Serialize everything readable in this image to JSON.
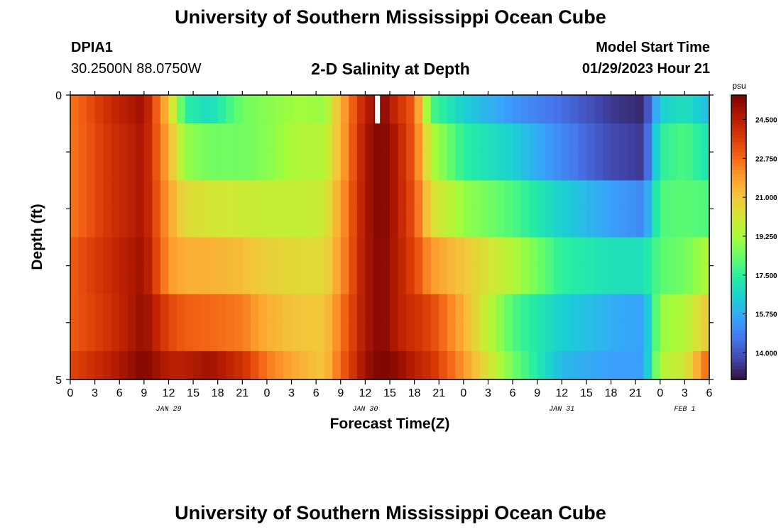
{
  "page": {
    "title": "University of Southern Mississippi Ocean Cube",
    "station_id": "DPIA1",
    "coordinates": "30.2500N  88.0750W",
    "subtitle": "2-D Salinity at Depth",
    "model_start_label": "Model Start Time",
    "model_start_value": "01/29/2023 Hour 21",
    "footer_title": "University of Southern Mississippi Ocean Cube"
  },
  "colors": {
    "colormap": [
      "#30123b",
      "#4145ab",
      "#4675ed",
      "#39a2fc",
      "#1bcfd4",
      "#24eca6",
      "#61fc6c",
      "#a4fc3b",
      "#d1e834",
      "#f3c63a",
      "#fe9b2d",
      "#f36315",
      "#d93806",
      "#b11901",
      "#7a0403"
    ]
  },
  "chart_data": {
    "type": "heatmap",
    "title": "2-D Salinity at Depth",
    "xlabel": "Forecast Time(Z)",
    "ylabel": "Depth (ft)",
    "x_hours": [
      0,
      3,
      6,
      9,
      12,
      15,
      18,
      21,
      24,
      27,
      30,
      33,
      36,
      39,
      42,
      45,
      48,
      51,
      54,
      57,
      60,
      63,
      66,
      69,
      72,
      75,
      78
    ],
    "x_tick_labels": [
      "0",
      "3",
      "6",
      "9",
      "12",
      "15",
      "18",
      "21",
      "0",
      "3",
      "6",
      "9",
      "12",
      "15",
      "18",
      "21",
      "0",
      "3",
      "6",
      "9",
      "12",
      "15",
      "18",
      "21",
      "0",
      "3",
      "6"
    ],
    "date_labels": [
      {
        "hour": 12,
        "label": "JAN 29"
      },
      {
        "hour": 36,
        "label": "JAN 30"
      },
      {
        "hour": 60,
        "label": "JAN 31"
      },
      {
        "hour": 75,
        "label": "FEB 1"
      }
    ],
    "x_range": [
      0,
      78
    ],
    "y_range": [
      0,
      5
    ],
    "y_tick_labels": [
      "0",
      "5"
    ],
    "depth_levels": [
      0,
      1,
      2,
      3,
      4,
      5
    ],
    "colorbar": {
      "unit": "psu",
      "min": 12.8,
      "max": 25.6,
      "tick_values": [
        14.0,
        15.75,
        17.5,
        19.25,
        21.0,
        22.75,
        24.5
      ],
      "tick_labels": [
        "14.000",
        "15.750",
        "17.500",
        "19.250",
        "21.000",
        "22.750",
        "24.500"
      ]
    },
    "missing_interval": {
      "hour_start": 37.2,
      "hour_end": 37.8,
      "depth_top": 0,
      "depth_bottom": 0.5
    },
    "salinity_profiles": [
      {
        "depth": 0.25,
        "hours": [
          0,
          5,
          9,
          12,
          14,
          17,
          21,
          24,
          28,
          31,
          33,
          36,
          38,
          40,
          42,
          44,
          48,
          54,
          60,
          66,
          70,
          72,
          75,
          78
        ],
        "psu": [
          22.5,
          24.2,
          25.0,
          21.0,
          17.5,
          16.8,
          18.5,
          18.8,
          19.2,
          19.0,
          21.5,
          24.5,
          25.5,
          24.0,
          23.0,
          18.0,
          16.5,
          15.3,
          14.5,
          13.5,
          13.2,
          16.5,
          17.0,
          16.0
        ]
      },
      {
        "depth": 1.25,
        "hours": [
          0,
          5,
          9,
          12,
          14,
          17,
          21,
          24,
          28,
          31,
          33,
          36,
          38,
          40,
          42,
          44,
          48,
          54,
          60,
          66,
          70,
          72,
          75,
          78
        ],
        "psu": [
          22.5,
          24.0,
          24.8,
          21.5,
          19.0,
          18.5,
          18.5,
          18.8,
          19.5,
          19.5,
          21.5,
          24.8,
          25.6,
          24.5,
          23.0,
          19.5,
          17.5,
          16.5,
          15.0,
          13.8,
          13.5,
          17.5,
          18.0,
          17.0
        ]
      },
      {
        "depth": 2.25,
        "hours": [
          0,
          5,
          9,
          12,
          14,
          17,
          21,
          24,
          28,
          31,
          33,
          36,
          38,
          40,
          42,
          44,
          48,
          54,
          60,
          66,
          70,
          72,
          75,
          78
        ],
        "psu": [
          22.5,
          24.0,
          24.8,
          21.8,
          20.5,
          20.2,
          20.0,
          19.8,
          19.8,
          20.0,
          21.8,
          24.8,
          25.6,
          24.5,
          23.2,
          20.5,
          19.0,
          18.0,
          16.5,
          15.5,
          15.0,
          18.0,
          18.2,
          18.0
        ]
      },
      {
        "depth": 3.25,
        "hours": [
          0,
          5,
          9,
          12,
          14,
          17,
          21,
          24,
          28,
          31,
          33,
          36,
          38,
          40,
          42,
          44,
          48,
          54,
          60,
          66,
          70,
          72,
          75,
          78
        ],
        "psu": [
          23.0,
          24.2,
          25.0,
          22.0,
          21.5,
          21.5,
          21.2,
          20.8,
          20.5,
          20.5,
          22.0,
          24.8,
          25.5,
          24.5,
          23.5,
          22.0,
          21.0,
          19.5,
          17.5,
          17.0,
          17.0,
          18.2,
          18.5,
          19.5
        ]
      },
      {
        "depth": 4.25,
        "hours": [
          0,
          5,
          9,
          12,
          14,
          17,
          21,
          24,
          28,
          31,
          33,
          36,
          38,
          40,
          42,
          44,
          48,
          54,
          60,
          66,
          70,
          72,
          75,
          78
        ],
        "psu": [
          23.0,
          24.0,
          25.2,
          23.5,
          23.0,
          22.8,
          22.5,
          21.5,
          21.0,
          21.0,
          22.5,
          24.8,
          25.5,
          24.5,
          24.0,
          23.5,
          21.5,
          18.0,
          16.5,
          15.8,
          15.5,
          19.0,
          19.5,
          21.0
        ]
      },
      {
        "depth": 4.75,
        "hours": [
          0,
          5,
          9,
          12,
          14,
          17,
          21,
          24,
          28,
          31,
          33,
          36,
          38,
          40,
          42,
          44,
          48,
          54,
          60,
          66,
          70,
          72,
          75,
          78
        ],
        "psu": [
          23.5,
          24.5,
          25.5,
          24.5,
          24.5,
          25.0,
          24.0,
          22.5,
          21.5,
          21.0,
          22.8,
          25.0,
          25.6,
          25.2,
          24.5,
          24.0,
          22.0,
          18.5,
          16.0,
          15.5,
          15.5,
          19.5,
          20.0,
          23.0
        ]
      }
    ]
  }
}
